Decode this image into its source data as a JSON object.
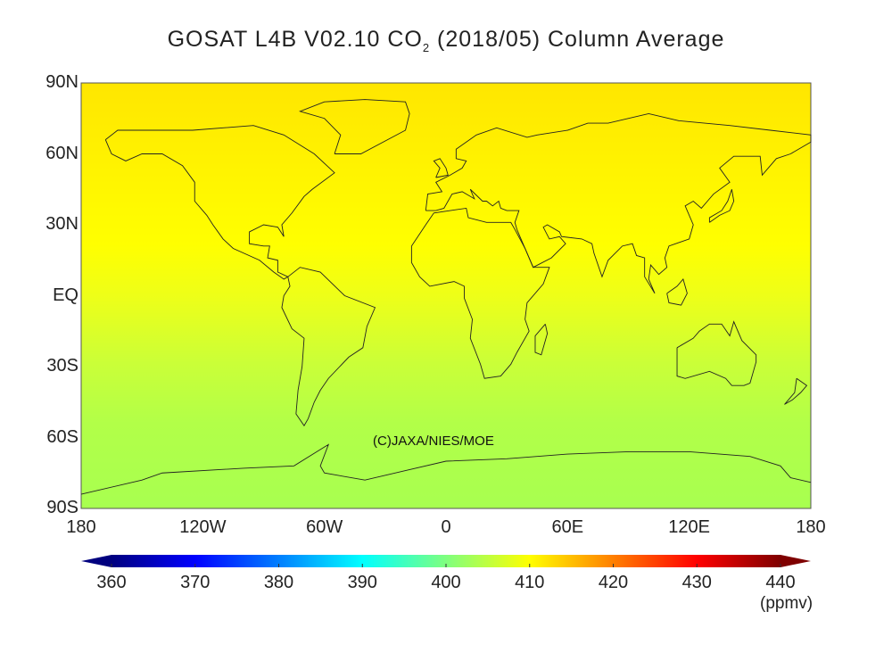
{
  "title": {
    "main": "GOSAT L4B V02.10 CO",
    "subscript": "2",
    "rest": " (2018/05) Column Average"
  },
  "map": {
    "lat_labels": [
      "90N",
      "60N",
      "30N",
      "EQ",
      "30S",
      "60S",
      "90S"
    ],
    "lat_values": [
      90,
      60,
      30,
      0,
      -30,
      -60,
      -90
    ],
    "lon_labels": [
      "180",
      "120W",
      "60W",
      "0",
      "60E",
      "120E",
      "180"
    ],
    "lon_values": [
      -180,
      -120,
      -60,
      0,
      60,
      120,
      180
    ],
    "copyright": "(C)JAXA/NIES/MOE",
    "field_by_latitude_ppmv": [
      {
        "lat": 90,
        "value": 413
      },
      {
        "lat": 60,
        "value": 412
      },
      {
        "lat": 30,
        "value": 410
      },
      {
        "lat": 0,
        "value": 408
      },
      {
        "lat": -30,
        "value": 406
      },
      {
        "lat": -60,
        "value": 405
      },
      {
        "lat": -90,
        "value": 405
      }
    ]
  },
  "colorbar": {
    "ticks": [
      "360",
      "370",
      "380",
      "390",
      "400",
      "410",
      "420",
      "430",
      "440"
    ],
    "min": 360,
    "max": 440,
    "unit": "(ppmv)",
    "colors": [
      "#00007f",
      "#0000ff",
      "#007fff",
      "#00ffff",
      "#7fff7f",
      "#ffff00",
      "#ff7f00",
      "#ff0000",
      "#7f0000"
    ]
  }
}
